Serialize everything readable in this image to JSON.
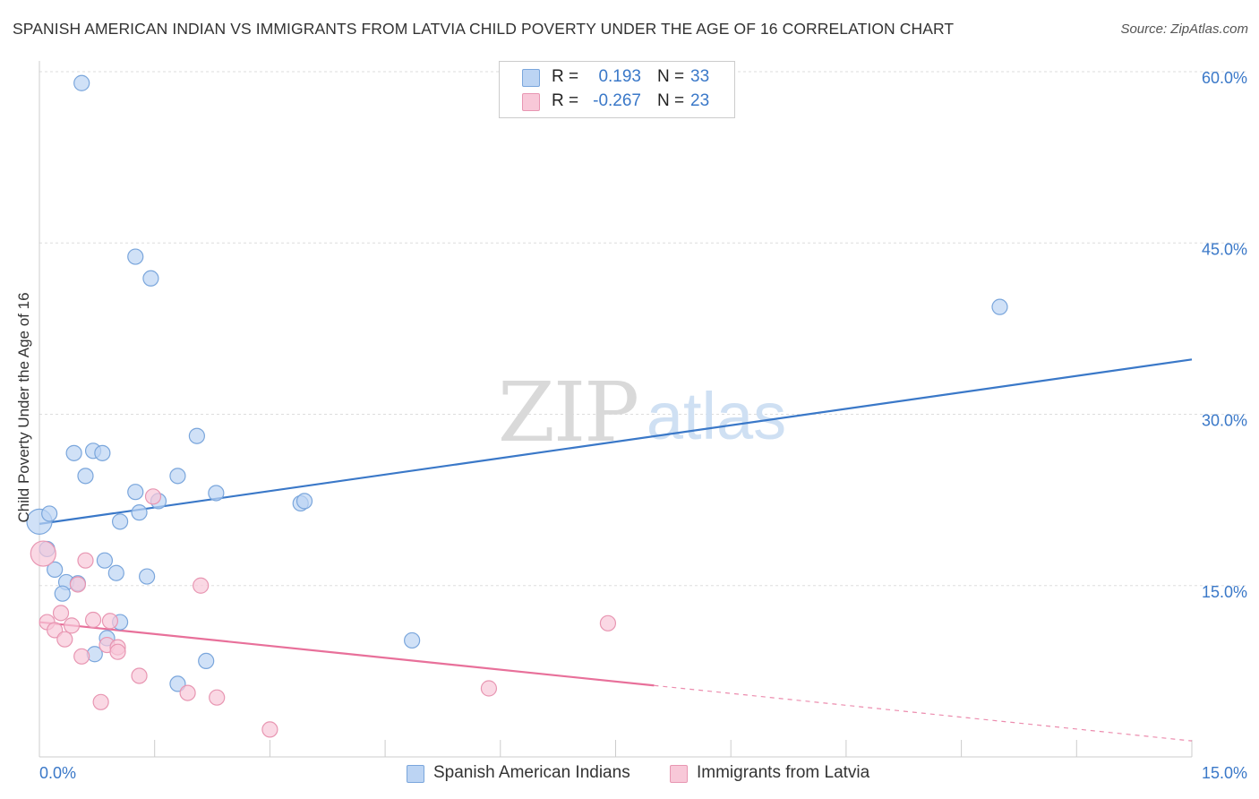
{
  "title": "SPANISH AMERICAN INDIAN VS IMMIGRANTS FROM LATVIA CHILD POVERTY UNDER THE AGE OF 16 CORRELATION CHART",
  "source": "Source: ZipAtlas.com",
  "watermark": {
    "zip": "ZIP",
    "atlas": "atlas"
  },
  "legend": {
    "r_label": "R =",
    "n_label": "N =",
    "series1": {
      "r": "0.193",
      "n": "33"
    },
    "series2": {
      "r": "-0.267",
      "n": "23"
    }
  },
  "bottom_legend": {
    "series1": "Spanish American Indians",
    "series2": "Immigrants from Latvia"
  },
  "chart_data": {
    "type": "scatter",
    "title": "SPANISH AMERICAN INDIAN VS IMMIGRANTS FROM LATVIA CHILD POVERTY UNDER THE AGE OF 16 CORRELATION CHART",
    "xlabel": "",
    "ylabel": "Child Poverty Under the Age of 16",
    "xlim": [
      0,
      15
    ],
    "ylim": [
      0,
      60
    ],
    "x_tick_labels": [
      "0.0%",
      "15.0%"
    ],
    "y_ticks": [
      15,
      30,
      45,
      60
    ],
    "y_tick_labels": [
      "15.0%",
      "30.0%",
      "45.0%",
      "60.0%"
    ],
    "grid": true,
    "colors": {
      "series1": "#3a78c8",
      "series2": "#e8709a",
      "series1_fill": "#bcd4f3",
      "series2_fill": "#f8c8d8",
      "tick_label": "#3a78c8"
    },
    "series": [
      {
        "name": "Spanish American Indians",
        "r": 0.193,
        "n": 33,
        "trend": {
          "x0": 0,
          "y0": 20.4,
          "x1": 15,
          "y1": 34.8,
          "dash_from_x": null
        },
        "points": [
          [
            0.0,
            20.6
          ],
          [
            0.13,
            21.3
          ],
          [
            0.1,
            18.2
          ],
          [
            0.2,
            16.4
          ],
          [
            0.35,
            15.3
          ],
          [
            0.3,
            14.3
          ],
          [
            0.5,
            15.2
          ],
          [
            0.45,
            26.6
          ],
          [
            0.7,
            26.8
          ],
          [
            0.82,
            26.6
          ],
          [
            0.6,
            24.6
          ],
          [
            0.85,
            17.2
          ],
          [
            1.0,
            16.1
          ],
          [
            1.05,
            20.6
          ],
          [
            1.25,
            23.2
          ],
          [
            1.3,
            21.4
          ],
          [
            1.55,
            22.4
          ],
          [
            1.4,
            15.8
          ],
          [
            1.8,
            24.6
          ],
          [
            2.05,
            28.1
          ],
          [
            2.3,
            23.1
          ],
          [
            3.4,
            22.2
          ],
          [
            3.45,
            22.4
          ],
          [
            1.05,
            11.8
          ],
          [
            0.88,
            10.4
          ],
          [
            0.72,
            9.0
          ],
          [
            1.8,
            6.4
          ],
          [
            2.17,
            8.4
          ],
          [
            4.85,
            10.2
          ],
          [
            0.55,
            59.0
          ],
          [
            1.25,
            43.8
          ],
          [
            1.45,
            41.9
          ],
          [
            12.5,
            39.4
          ]
        ]
      },
      {
        "name": "Immigrants from Latvia",
        "r": -0.267,
        "n": 23,
        "trend": {
          "x0": 0,
          "y0": 11.8,
          "x1": 15,
          "y1": 1.4,
          "dash_from_x": 8.0
        },
        "points": [
          [
            0.05,
            17.8
          ],
          [
            0.1,
            11.8
          ],
          [
            0.2,
            11.1
          ],
          [
            0.28,
            12.6
          ],
          [
            0.33,
            10.3
          ],
          [
            0.42,
            11.5
          ],
          [
            0.5,
            15.1
          ],
          [
            0.55,
            8.8
          ],
          [
            0.6,
            17.2
          ],
          [
            0.7,
            12.0
          ],
          [
            0.8,
            4.8
          ],
          [
            0.88,
            9.8
          ],
          [
            0.92,
            11.9
          ],
          [
            1.02,
            9.6
          ],
          [
            1.02,
            9.2
          ],
          [
            1.3,
            7.1
          ],
          [
            1.48,
            22.8
          ],
          [
            1.93,
            5.6
          ],
          [
            2.1,
            15.0
          ],
          [
            2.31,
            5.2
          ],
          [
            3.0,
            2.4
          ],
          [
            5.85,
            6.0
          ],
          [
            7.4,
            11.7
          ]
        ]
      }
    ]
  }
}
